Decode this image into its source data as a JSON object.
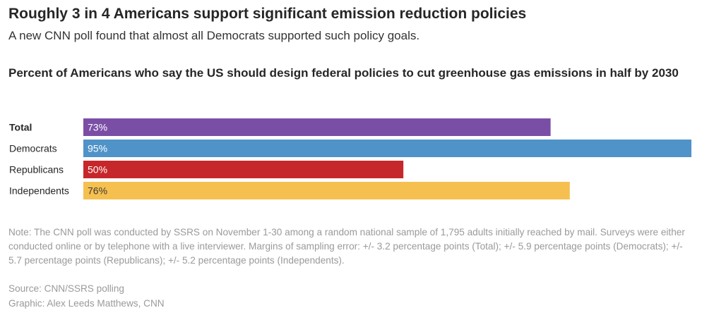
{
  "header": {
    "title": "Roughly 3 in 4 Americans support significant emission reduction policies",
    "subtitle": "A new CNN poll found that almost all Democrats supported such policy goals."
  },
  "footer": {
    "note": "Note: The CNN poll was conducted by SSRS on November 1-30 among a random national sample of 1,795 adults initially reached by mail. Surveys were either conducted online or by telephone with a live interviewer. Margins of sampling error: +/- 3.2 percentage points (Total); +/- 5.9 percentage points (Democrats); +/- 5.7 percentage points (Republicans); +/- 5.2 percentage points (Independents).",
    "source": "Source: CNN/SSRS polling",
    "credit": "Graphic: Alex Leeds Matthews, CNN"
  },
  "chart_data": {
    "type": "bar",
    "orientation": "horizontal",
    "title": "Percent of Americans who say the US should design federal policies to cut greenhouse gas emissions in half by 2030",
    "categories": [
      "Total",
      "Democrats",
      "Republicans",
      "Independents"
    ],
    "values": [
      73,
      95,
      50,
      76
    ],
    "value_labels": [
      "73%",
      "95%",
      "50%",
      "76%"
    ],
    "colors": [
      "#7b4ea6",
      "#4f93c8",
      "#c6272a",
      "#f5c04f"
    ],
    "label_colors": [
      "#ffffff",
      "#ffffff",
      "#ffffff",
      "#3a3a3a"
    ],
    "bold_categories": [
      "Total"
    ],
    "xlim": [
      0,
      95
    ],
    "grid": false,
    "legend": "none"
  }
}
